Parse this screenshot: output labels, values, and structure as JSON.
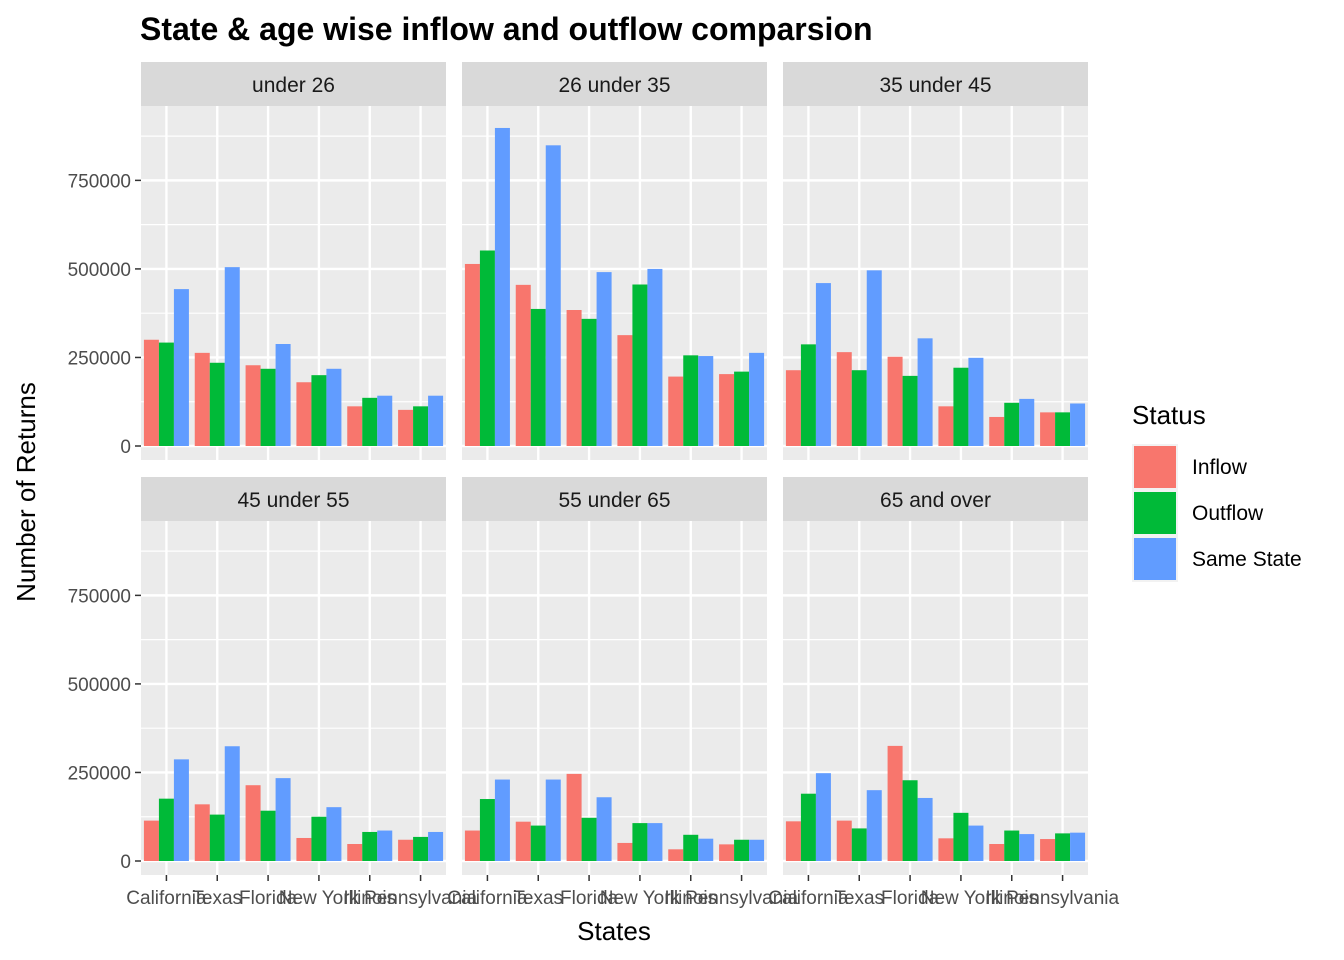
{
  "chart_data": {
    "type": "bar",
    "title": "State & age wise inflow and outflow comparsion",
    "xlabel": "States",
    "ylabel": "Number of Returns",
    "ylim": [
      0,
      960000
    ],
    "yticks": [
      0,
      250000,
      500000,
      750000
    ],
    "ytick_labels": [
      "0",
      "250000",
      "500000",
      "750000"
    ],
    "categories": [
      "California",
      "Texas",
      "Florida",
      "New York",
      "Illinois",
      "Pennsylvania"
    ],
    "legend": {
      "title": "Status",
      "position": "right"
    },
    "grid": true,
    "series_meta": [
      {
        "name": "Inflow",
        "color": "#F8766D"
      },
      {
        "name": "Outflow",
        "color": "#00BA38"
      },
      {
        "name": "Same State",
        "color": "#619CFF"
      }
    ],
    "panels": [
      {
        "label": "under 26",
        "series": [
          {
            "name": "Inflow",
            "values": [
              300000,
              263000,
              228000,
              180000,
              112000,
              102000
            ]
          },
          {
            "name": "Outflow",
            "values": [
              292000,
              235000,
              218000,
              200000,
              136000,
              112000
            ]
          },
          {
            "name": "Same State",
            "values": [
              443000,
              505000,
              288000,
              218000,
              142000,
              142000
            ]
          }
        ]
      },
      {
        "label": "26 under 35",
        "series": [
          {
            "name": "Inflow",
            "values": [
              514000,
              455000,
              384000,
              313000,
              196000,
              203000
            ]
          },
          {
            "name": "Outflow",
            "values": [
              552000,
              387000,
              359000,
              456000,
              256000,
              210000
            ]
          },
          {
            "name": "Same State",
            "values": [
              898000,
              849000,
              491000,
              500000,
              254000,
              263000
            ]
          }
        ]
      },
      {
        "label": "35 under 45",
        "series": [
          {
            "name": "Inflow",
            "values": [
              214000,
              265000,
              252000,
              112000,
              82000,
              95000
            ]
          },
          {
            "name": "Outflow",
            "values": [
              287000,
              214000,
              198000,
              221000,
              122000,
              95000
            ]
          },
          {
            "name": "Same State",
            "values": [
              460000,
              496000,
              304000,
              249000,
              133000,
              120000
            ]
          }
        ]
      },
      {
        "label": "45 under 55",
        "series": [
          {
            "name": "Inflow",
            "values": [
              114000,
              160000,
              214000,
              65000,
              48000,
              60000
            ]
          },
          {
            "name": "Outflow",
            "values": [
              176000,
              131000,
              142000,
              125000,
              82000,
              68000
            ]
          },
          {
            "name": "Same State",
            "values": [
              287000,
              324000,
              234000,
              152000,
              86000,
              82000
            ]
          }
        ]
      },
      {
        "label": "55 under 65",
        "series": [
          {
            "name": "Inflow",
            "values": [
              86000,
              111000,
              246000,
              51000,
              33000,
              47000
            ]
          },
          {
            "name": "Outflow",
            "values": [
              175000,
              100000,
              122000,
              107000,
              74000,
              60000
            ]
          },
          {
            "name": "Same State",
            "values": [
              230000,
              230000,
              180000,
              107000,
              63000,
              60000
            ]
          }
        ]
      },
      {
        "label": "65 and over",
        "series": [
          {
            "name": "Inflow",
            "values": [
              112000,
              114000,
              325000,
              64000,
              48000,
              62000
            ]
          },
          {
            "name": "Outflow",
            "values": [
              190000,
              92000,
              228000,
              136000,
              86000,
              78000
            ]
          },
          {
            "name": "Same State",
            "values": [
              248000,
              200000,
              178000,
              100000,
              76000,
              80000
            ]
          }
        ]
      }
    ]
  }
}
